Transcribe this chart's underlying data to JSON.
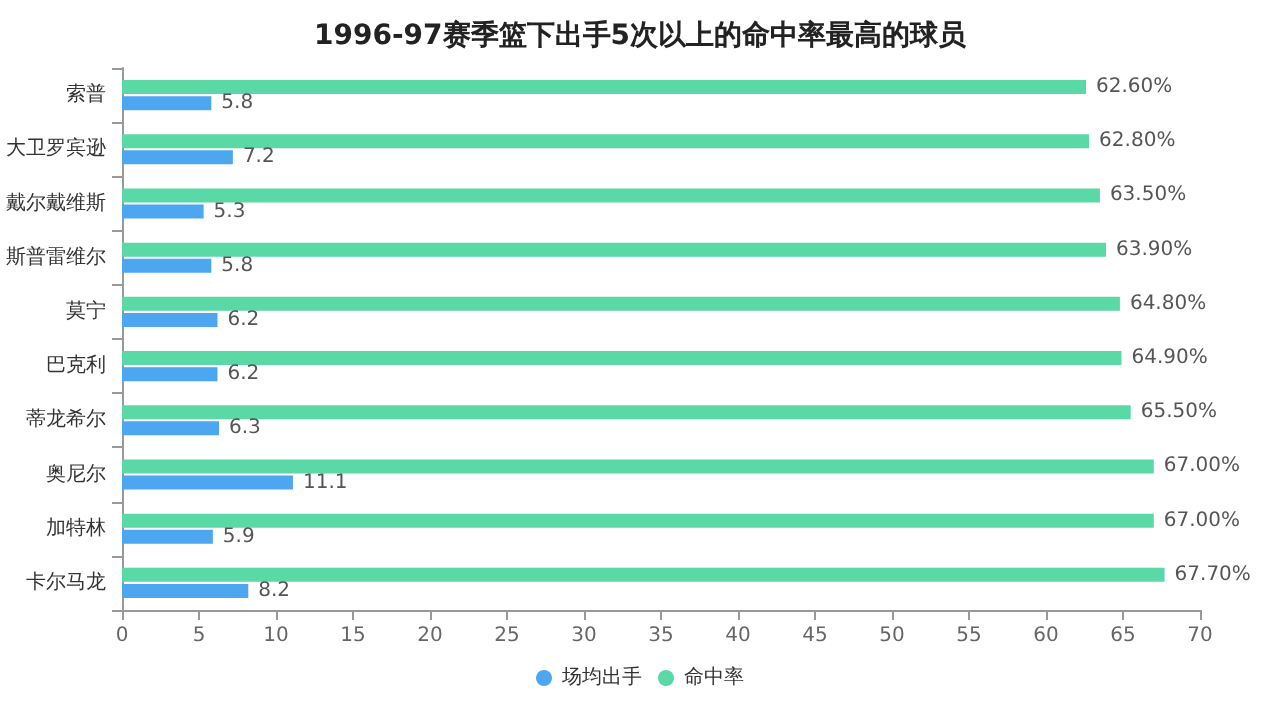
{
  "chart_data": {
    "type": "bar",
    "orientation": "horizontal",
    "title": "1996-97赛季篮下出手5次以上的命中率最高的球员",
    "categories": [
      "索普",
      "大卫罗宾逊",
      "戴尔戴维斯",
      "斯普雷维尔",
      "莫宁",
      "巴克利",
      "蒂龙希尔",
      "奥尼尔",
      "加特林",
      "卡尔马龙"
    ],
    "series": [
      {
        "name": "场均出手",
        "color": "#4da6f0",
        "values": [
          5.8,
          7.2,
          5.3,
          5.8,
          6.2,
          6.2,
          6.3,
          11.1,
          5.9,
          8.2
        ],
        "value_labels": [
          "5.8",
          "7.2",
          "5.3",
          "5.8",
          "6.2",
          "6.2",
          "6.3",
          "11.1",
          "5.9",
          "8.2"
        ]
      },
      {
        "name": "命中率",
        "color": "#5ad8a6",
        "values": [
          62.6,
          62.8,
          63.5,
          63.9,
          64.8,
          64.9,
          65.5,
          67.0,
          67.0,
          67.7
        ],
        "value_labels": [
          "62.60%",
          "62.80%",
          "63.50%",
          "63.90%",
          "64.80%",
          "64.90%",
          "65.50%",
          "67.00%",
          "67.00%",
          "67.70%"
        ]
      }
    ],
    "xlim": [
      0,
      70
    ],
    "xticks": [
      0,
      5,
      10,
      15,
      20,
      25,
      30,
      35,
      40,
      45,
      50,
      55,
      60,
      65,
      70
    ],
    "grid": false,
    "legend": "bottom"
  }
}
